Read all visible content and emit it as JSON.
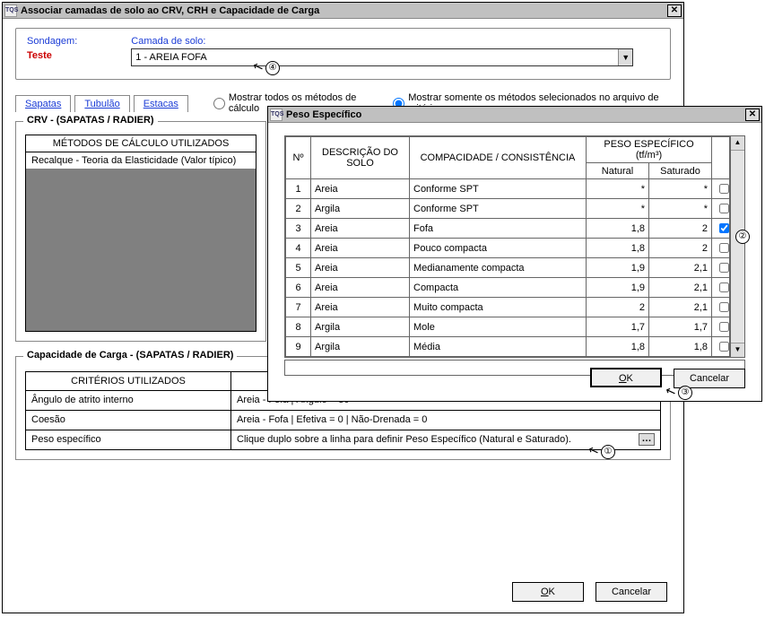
{
  "mainWin": {
    "title": "Associar camadas de solo ao CRV,  CRH e Capacidade de Carga",
    "icon": "TQS",
    "sondagemLabel": "Sondagem:",
    "sondagemValue": "Teste",
    "camadaLabel": "Camada de solo:",
    "camadaValue": "1 - AREIA FOFA",
    "tabs": [
      "Sapatas",
      "Tubulão",
      "Estacas"
    ],
    "radioAll": "Mostrar todos os métodos de cálculo",
    "radioSel": "Mostrar somente os métodos selecionados no arquivo de critérios",
    "crvTitle": "CRV - (SAPATAS / RADIER)",
    "crvHeader": "MÉTODOS DE CÁLCULO UTILIZADOS",
    "crvRow1": "Recalque - Teoria da Elasticidade (Valor típico)",
    "capTitle": "Capacidade de Carga - (SAPATAS / RADIER)",
    "capHeader": "CRITÉRIOS UTILIZADOS",
    "capRows": [
      {
        "k": "Ângulo de atrito interno",
        "v": "Areia - Fofa | Ângulo = 30°"
      },
      {
        "k": "Coesão",
        "v": "Areia - Fofa | Efetiva = 0 | Não-Drenada = 0"
      },
      {
        "k": "Peso específico",
        "v": "Clique duplo sobre a linha para definir Peso Específico (Natural e Saturado)."
      }
    ],
    "ok": "OK",
    "cancel": "Cancelar"
  },
  "popup": {
    "title": "Peso Específico",
    "icon": "TQS",
    "cols": {
      "n": "Nº",
      "desc": "DESCRIÇÃO DO SOLO",
      "comp": "COMPACIDADE / CONSISTÊNCIA",
      "grp": "PESO ESPECÍFICO (tf/m³)",
      "nat": "Natural",
      "sat": "Saturado"
    },
    "rows": [
      {
        "n": "1",
        "desc": "Areia",
        "comp": "Conforme SPT",
        "nat": "*",
        "sat": "*",
        "chk": false
      },
      {
        "n": "2",
        "desc": "Argila",
        "comp": "Conforme SPT",
        "nat": "*",
        "sat": "*",
        "chk": false
      },
      {
        "n": "3",
        "desc": "Areia",
        "comp": "Fofa",
        "nat": "1,8",
        "sat": "2",
        "chk": true
      },
      {
        "n": "4",
        "desc": "Areia",
        "comp": "Pouco compacta",
        "nat": "1,8",
        "sat": "2",
        "chk": false
      },
      {
        "n": "5",
        "desc": "Areia",
        "comp": "Medianamente compacta",
        "nat": "1,9",
        "sat": "2,1",
        "chk": false
      },
      {
        "n": "6",
        "desc": "Areia",
        "comp": "Compacta",
        "nat": "1,9",
        "sat": "2,1",
        "chk": false
      },
      {
        "n": "7",
        "desc": "Areia",
        "comp": "Muito compacta",
        "nat": "2",
        "sat": "2,1",
        "chk": false
      },
      {
        "n": "8",
        "desc": "Argila",
        "comp": "Mole",
        "nat": "1,7",
        "sat": "1,7",
        "chk": false
      },
      {
        "n": "9",
        "desc": "Argila",
        "comp": "Média",
        "nat": "1,8",
        "sat": "1,8",
        "chk": false
      }
    ],
    "ok": "OK",
    "cancel": "Cancelar"
  },
  "annotations": [
    "①",
    "②",
    "③",
    "④"
  ],
  "colors": {
    "gray": "#808080",
    "titlebar": "#c0c0c0",
    "blue": "#1a3bd6",
    "red": "#c00"
  }
}
